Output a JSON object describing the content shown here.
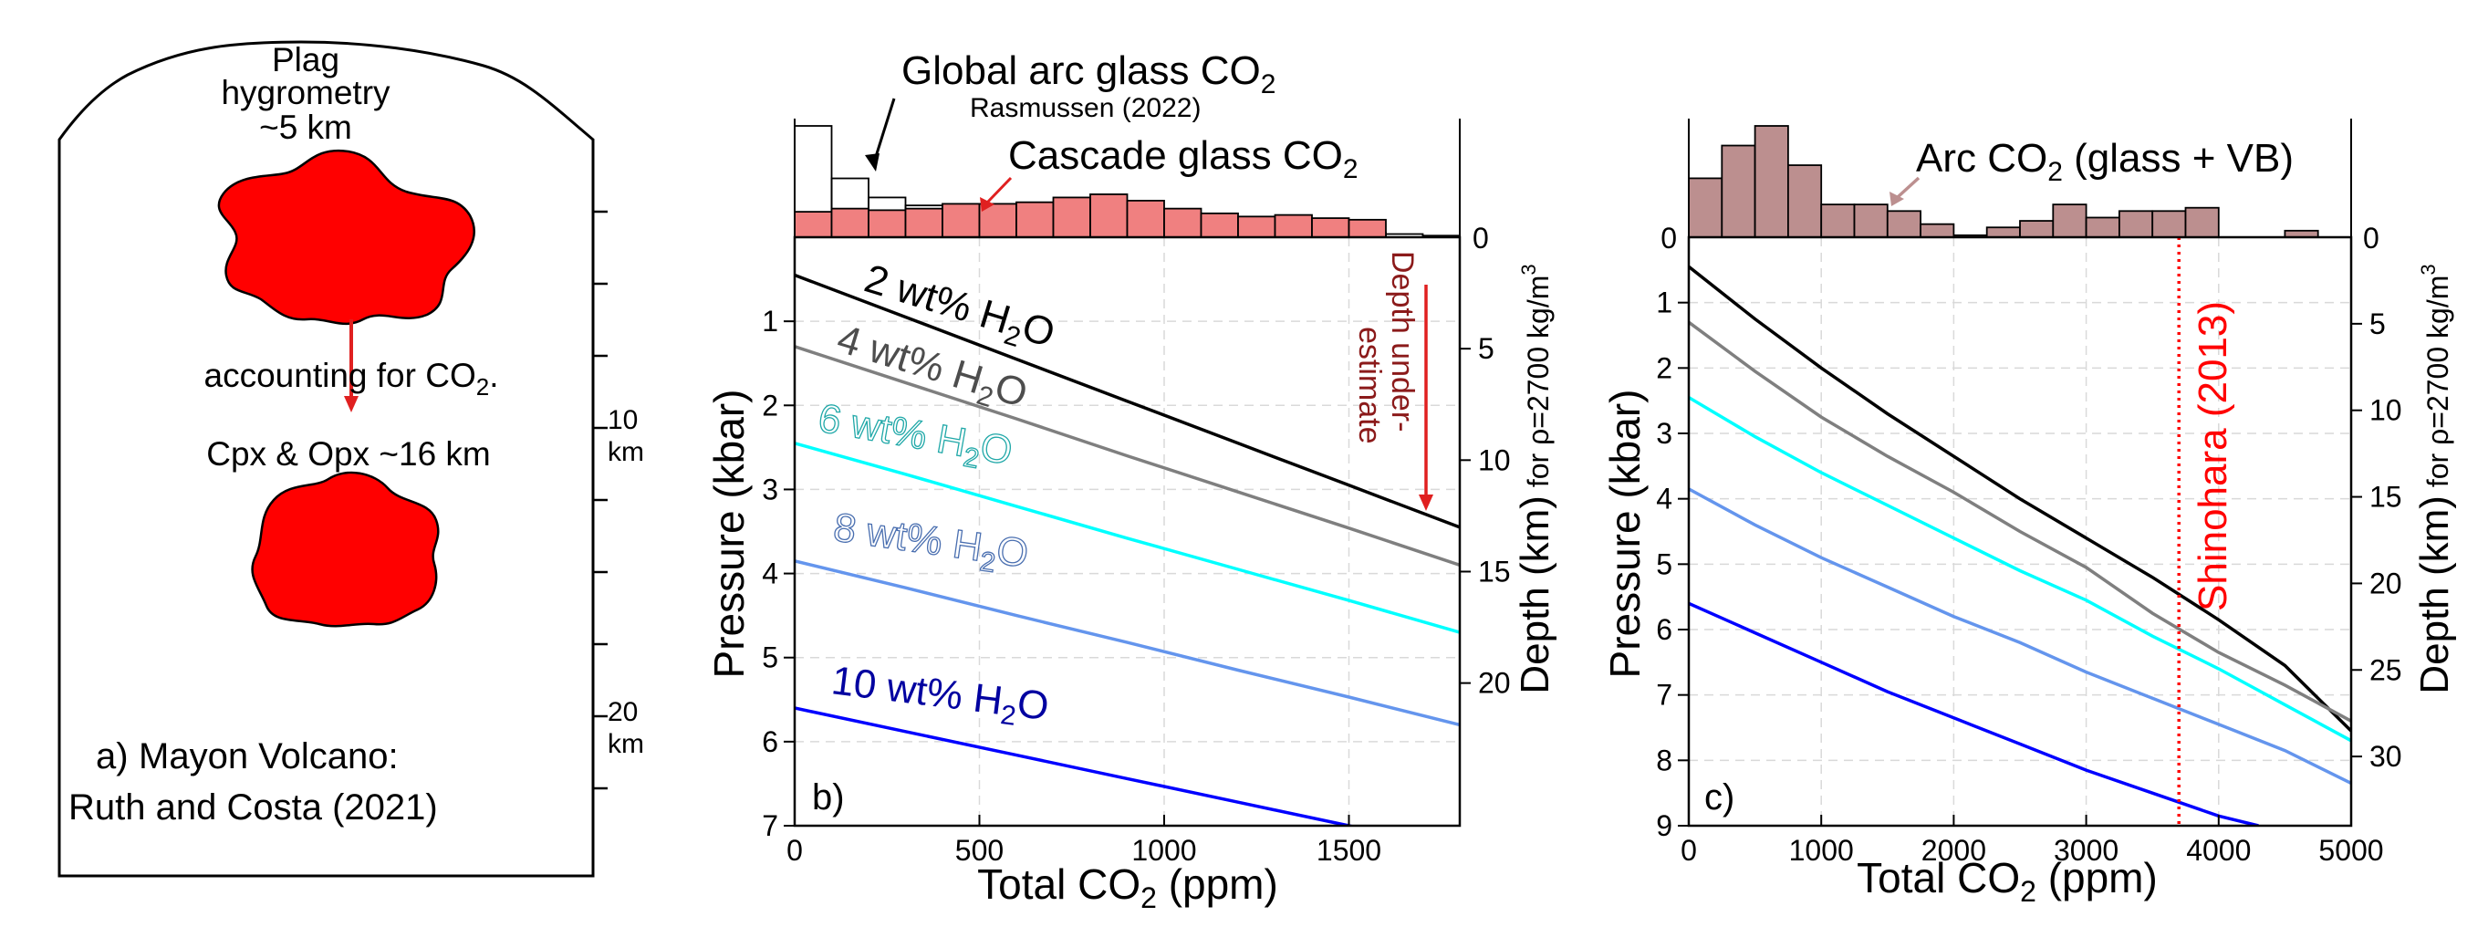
{
  "colors": {
    "black": "#000000",
    "wt4": "#7f7f7f",
    "wt6": "#00ffff",
    "wt8": "#6495ed",
    "wt10": "#0000ff",
    "red_blob": "#ff0000",
    "red_arrow": "#e02020",
    "dark_red": "#8b1a1a",
    "shinohara": "#ff0000",
    "arc_hist_fill": "#bc8f8f",
    "cascade_hist_fill": "#f08080",
    "global_hist_edge": "#000000",
    "grid": "#d9d9d9"
  },
  "panel_a": {
    "top_label_line1": "Plag",
    "top_label_line2": "hygrometry",
    "top_label_line3": "~5 km",
    "arrow_label": "accounting for CO",
    "arrow_label_sub": "2",
    "arrow_label_end": ".",
    "lower_label": "Cpx & Opx ~16 km",
    "depth_tick_10_num": "10",
    "depth_tick_10_unit": "km",
    "depth_tick_20_num": "20",
    "depth_tick_20_unit": "km",
    "panel_letter": "a)",
    "caption_line1": "Mayon Volcano:",
    "caption_line2": "Ruth and Costa (2021)",
    "depth_ticks_km": [
      2.5,
      5,
      7.5,
      10,
      12.5,
      15,
      17.5,
      20,
      22.5
    ]
  },
  "panel_b": {
    "hist_label_global": "Global arc glass CO",
    "hist_label_global_sub": "2",
    "hist_label_global_ref": "Rasmussen (2022)",
    "hist_label_cascade": "Cascade glass CO",
    "hist_label_cascade_sub": "2",
    "hist_zero": "0",
    "annot_line1": "Depth under-",
    "annot_line2": "estimate",
    "panel_letter": "b)",
    "xlabel_pre": "Total CO",
    "xlabel_sub": "2",
    "xlabel_post": " (ppm)",
    "ylabel": "Pressure (kbar)",
    "y2label_main": "Depth (km)",
    "y2label_small": " for ρ=2700 kg/m",
    "y2label_sup": "3",
    "curve_labels": [
      {
        "pre": "2 wt% H",
        "sub": "2",
        "post": "O"
      },
      {
        "pre": "4 wt% H",
        "sub": "2",
        "post": "O"
      },
      {
        "pre": "6 wt% H",
        "sub": "2",
        "post": "O"
      },
      {
        "pre": "8 wt% H",
        "sub": "2",
        "post": "O"
      },
      {
        "pre": "10 wt% H",
        "sub": "2",
        "post": "O"
      }
    ]
  },
  "panel_c": {
    "hist_label_pre": "Arc CO",
    "hist_label_sub": "2",
    "hist_label_post": " (glass + VB)",
    "hist_zero_left": "0",
    "hist_zero_right": "0",
    "shinohara_label": "Shinohara (2013)",
    "panel_letter": "c)",
    "xlabel_pre": "Total CO",
    "xlabel_sub": "2",
    "xlabel_post": " (ppm)",
    "ylabel": "Pressure (kbar)",
    "y2label_main": "Depth (km)",
    "y2label_small": " for ρ=2700 kg/m",
    "y2label_sup": "3"
  },
  "chart_data": [
    {
      "id": "b",
      "type": "line",
      "xlabel": "Total CO2 (ppm)",
      "ylabel": "Pressure (kbar)",
      "y2label": "Depth (km) for ρ=2700 kg/m3",
      "xlim": [
        0,
        1800
      ],
      "ylim": [
        7,
        0
      ],
      "y2lim": [
        26.4,
        0
      ],
      "xticks": [
        0,
        500,
        1000,
        1500
      ],
      "yticks": [
        1,
        2,
        3,
        4,
        5,
        6,
        7
      ],
      "y2ticks": [
        5,
        10,
        15,
        20
      ],
      "grid": true,
      "series": [
        {
          "name": "2 wt% H2O",
          "color_key": "black",
          "x": [
            0,
            300,
            600,
            900,
            1200,
            1500,
            1800
          ],
          "y": [
            0.45,
            0.95,
            1.45,
            1.95,
            2.45,
            2.95,
            3.45
          ]
        },
        {
          "name": "4 wt% H2O",
          "color_key": "wt4",
          "x": [
            0,
            300,
            600,
            900,
            1200,
            1500,
            1800
          ],
          "y": [
            1.3,
            1.73,
            2.16,
            2.6,
            3.03,
            3.46,
            3.9
          ]
        },
        {
          "name": "6 wt% H2O",
          "color_key": "wt6",
          "x": [
            0,
            300,
            600,
            900,
            1200,
            1500,
            1800
          ],
          "y": [
            2.45,
            2.82,
            3.2,
            3.58,
            3.95,
            4.32,
            4.7
          ]
        },
        {
          "name": "8 wt% H2O",
          "color_key": "wt8",
          "x": [
            0,
            300,
            600,
            900,
            1200,
            1500,
            1800
          ],
          "y": [
            3.85,
            4.17,
            4.5,
            4.82,
            5.15,
            5.47,
            5.8
          ]
        },
        {
          "name": "10 wt% H2O",
          "color_key": "wt10",
          "x": [
            0,
            300,
            600,
            900,
            1200,
            1500,
            1600
          ],
          "y": [
            5.6,
            5.88,
            6.16,
            6.44,
            6.72,
            7.0,
            7.1
          ]
        }
      ],
      "histograms": [
        {
          "name": "Global arc glass CO2",
          "source": "Rasmussen (2022)",
          "fill": "none",
          "bin_width": 100,
          "bin_starts": [
            0,
            100,
            200,
            300,
            400,
            500,
            600,
            700,
            800,
            900,
            1000,
            1100,
            1200,
            1300,
            1400,
            1500,
            1600,
            1700
          ],
          "counts": [
            70,
            37,
            25,
            20,
            17,
            15,
            15,
            13,
            12,
            11,
            9,
            8,
            6,
            5,
            4,
            3,
            2,
            1
          ]
        },
        {
          "name": "Cascade glass CO2",
          "fill": "cascade_hist_fill",
          "bin_width": 100,
          "bin_starts": [
            0,
            100,
            200,
            300,
            400,
            500,
            600,
            700,
            800,
            900,
            1000,
            1100,
            1200,
            1300,
            1400,
            1500,
            1600,
            1700
          ],
          "counts": [
            16,
            18,
            17,
            18,
            21,
            21,
            22,
            25,
            27,
            23,
            18,
            15,
            13,
            14,
            12,
            11,
            0,
            0
          ]
        }
      ]
    },
    {
      "id": "c",
      "type": "line",
      "xlabel": "Total CO2 (ppm)",
      "ylabel": "Pressure (kbar)",
      "y2label": "Depth (km) for ρ=2700 kg/m3",
      "xlim": [
        0,
        5000
      ],
      "ylim": [
        9,
        0
      ],
      "y2lim": [
        34,
        0
      ],
      "xticks": [
        0,
        1000,
        2000,
        3000,
        4000,
        5000
      ],
      "yticks": [
        1,
        2,
        3,
        4,
        5,
        6,
        7,
        8,
        9
      ],
      "y2ticks": [
        5,
        10,
        15,
        20,
        25,
        30
      ],
      "grid": true,
      "vline": {
        "x": 3700,
        "label": "Shinohara (2013)"
      },
      "series": [
        {
          "name": "2 wt% H2O",
          "color_key": "black",
          "x": [
            0,
            500,
            1000,
            1500,
            2000,
            2500,
            3000,
            3500,
            4000,
            4500,
            5000
          ],
          "y": [
            0.45,
            1.25,
            2.0,
            2.7,
            3.35,
            4.0,
            4.6,
            5.2,
            5.85,
            6.55,
            7.55
          ]
        },
        {
          "name": "4 wt% H2O",
          "color_key": "wt4",
          "x": [
            0,
            500,
            1000,
            1500,
            2000,
            2500,
            3000,
            3500,
            4000,
            4500,
            5000
          ],
          "y": [
            1.3,
            2.05,
            2.75,
            3.35,
            3.9,
            4.5,
            5.05,
            5.75,
            6.35,
            6.85,
            7.4
          ]
        },
        {
          "name": "6 wt% H2O",
          "color_key": "wt6",
          "x": [
            0,
            500,
            1000,
            1500,
            2000,
            2500,
            3000,
            3500,
            4000,
            4500,
            5000
          ],
          "y": [
            2.45,
            3.05,
            3.6,
            4.1,
            4.6,
            5.1,
            5.55,
            6.1,
            6.6,
            7.15,
            7.7
          ]
        },
        {
          "name": "8 wt% H2O",
          "color_key": "wt8",
          "x": [
            0,
            500,
            1000,
            1500,
            2000,
            2500,
            3000,
            3500,
            4000,
            4500,
            5000
          ],
          "y": [
            3.85,
            4.4,
            4.9,
            5.35,
            5.8,
            6.2,
            6.65,
            7.05,
            7.45,
            7.85,
            8.35
          ]
        },
        {
          "name": "10 wt% H2O",
          "color_key": "wt10",
          "x": [
            0,
            500,
            1000,
            1500,
            2000,
            2500,
            3000,
            3500,
            4000,
            4300
          ],
          "y": [
            5.6,
            6.05,
            6.5,
            6.95,
            7.35,
            7.75,
            8.15,
            8.5,
            8.85,
            9.0
          ]
        }
      ],
      "histograms": [
        {
          "name": "Arc CO2 (glass + VB)",
          "fill": "arc_hist_fill",
          "bin_width": 250,
          "bin_starts": [
            0,
            250,
            500,
            750,
            1000,
            1250,
            1500,
            1750,
            2000,
            2250,
            2500,
            2750,
            3000,
            3250,
            3500,
            3750,
            4000,
            4250,
            4500,
            4750
          ],
          "counts": [
            9,
            14,
            17,
            11,
            5,
            5,
            4,
            2,
            0.3,
            1.5,
            2.5,
            5,
            3,
            4,
            4,
            4.5,
            0,
            0,
            1,
            0
          ]
        }
      ]
    }
  ]
}
